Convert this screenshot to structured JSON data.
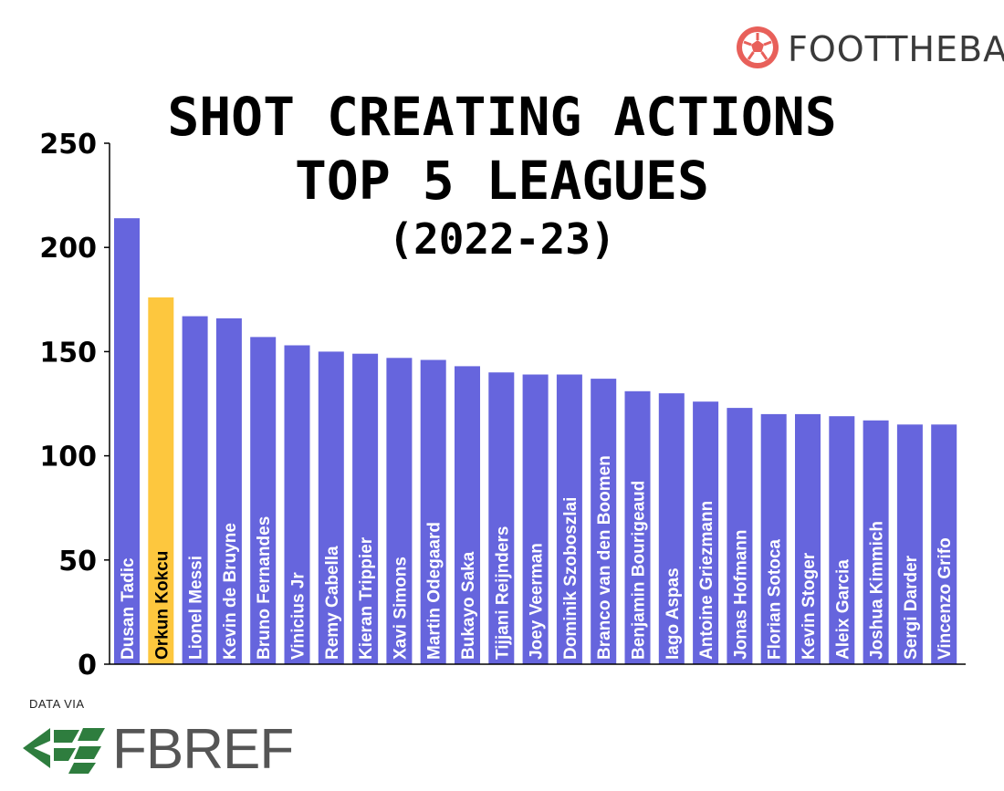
{
  "brand": {
    "name": "FOOTTHEBALL",
    "icon": "football-icon",
    "accent": "#e8605a"
  },
  "source": {
    "caption": "DATA VIA",
    "name": "FBREF",
    "icon": "fbref-logo-icon",
    "accent": "#2e7d3e"
  },
  "colors": {
    "bar": "#6665dd",
    "highlight": "#fdc73e",
    "text_on_bar": "#ffffff",
    "text_on_highlight": "#000000"
  },
  "chart_data": {
    "type": "bar",
    "title": [
      "SHOT CREATING ACTIONS",
      "TOP 5 LEAGUES",
      "(2022-23)"
    ],
    "xlabel": "",
    "ylabel": "",
    "ylim": [
      0,
      250
    ],
    "yticks": [
      "0",
      "50",
      "100",
      "150",
      "200",
      "250"
    ],
    "grid": false,
    "highlight_index": 1,
    "categories": [
      "Dusan Tadic",
      "Orkun Kokcu",
      "Lionel Messi",
      "Kevin de Bruyne",
      "Bruno Fernandes",
      "Vinicius Jr",
      "Remy Cabella",
      "Kieran Trippier",
      "Xavi Simons",
      "Martin Odegaard",
      "Bukayo Saka",
      "Tijjani Reijnders",
      "Joey Veerman",
      "Dominik Szoboszlai",
      "Branco van den Boomen",
      "Benjamin Bourigeaud",
      "Iago Aspas",
      "Antoine Griezmann",
      "Jonas Hofmann",
      "Florian Sotoca",
      "Kevin Stoger",
      "Aleix Garcia",
      "Joshua Kimmich",
      "Sergi Darder",
      "Vincenzo Grifo"
    ],
    "values": [
      214,
      176,
      167,
      166,
      157,
      153,
      150,
      149,
      147,
      146,
      143,
      140,
      139,
      139,
      137,
      131,
      130,
      126,
      123,
      120,
      120,
      119,
      117,
      115,
      115
    ]
  }
}
